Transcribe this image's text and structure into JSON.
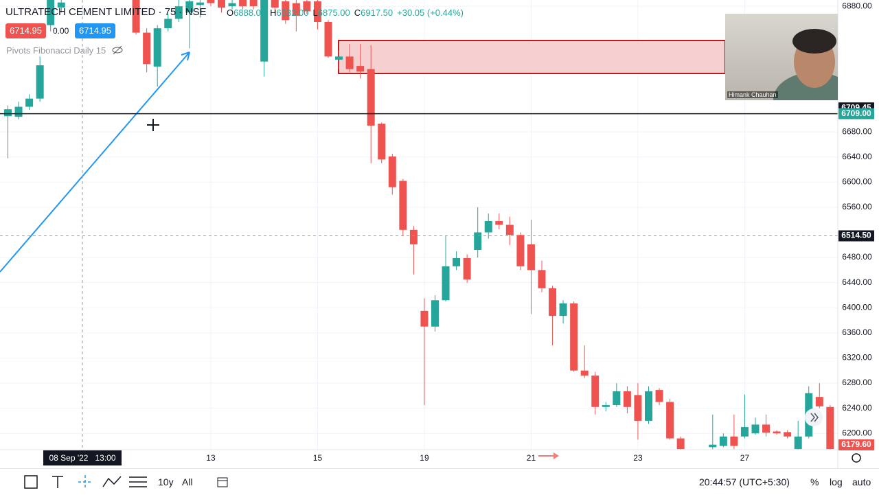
{
  "chart_data": {
    "type": "candlestick",
    "up_color": "#26a69a",
    "down_color": "#ef5350",
    "open": [
      6705,
      6704,
      6720,
      6733,
      6850,
      6878,
      null,
      null,
      null,
      null,
      null,
      null,
      6895,
      6838,
      6784,
      6845,
      6860,
      6870,
      6882,
      6890,
      6895,
      6880,
      6890,
      6892,
      6792,
      6892,
      6888,
      6885,
      6888,
      6888,
      6855,
      6795,
      6800,
      6785,
      6780,
      6693,
      6641,
      6602,
      6524,
      6395,
      6370,
      6412,
      6466,
      6479,
      6492,
      6520,
      6538,
      6532,
      6516,
      6501,
      6460,
      6431,
      6387,
      6407,
      6300,
      6292,
      6242,
      6245,
      6267,
      6261,
      6220,
      6269,
      6250,
      6192,
      null,
      null,
      6178,
      6180,
      6195,
      6195,
      6200,
      6214,
      6203,
      6202,
      6175,
      6195,
      6258,
      6242
    ],
    "high": [
      6722,
      6728,
      6740,
      6800,
      6895,
      6890,
      null,
      null,
      null,
      null,
      null,
      null,
      6900,
      6845,
      6850,
      6868,
      6895,
      6892,
      6892,
      6895,
      6900,
      6890,
      6895,
      6895,
      6900,
      6895,
      6892,
      6890,
      6892,
      6895,
      6858,
      6810,
      6820,
      6820,
      6818,
      6695,
      6645,
      6605,
      6530,
      6415,
      6420,
      6515,
      6490,
      6485,
      6560,
      6550,
      6550,
      6545,
      6520,
      6540,
      6475,
      6435,
      6412,
      6410,
      6340,
      6298,
      6250,
      6280,
      6275,
      6280,
      6275,
      6272,
      6255,
      6195,
      null,
      null,
      6230,
      6200,
      6230,
      6262,
      6225,
      6230,
      6205,
      6205,
      6220,
      6275,
      6280,
      6245
    ],
    "low": [
      6638,
      6700,
      6715,
      6728,
      6840,
      6870,
      null,
      null,
      null,
      null,
      null,
      null,
      6835,
      6775,
      6752,
      6840,
      6855,
      6813,
      6862,
      6880,
      6870,
      6875,
      6875,
      6875,
      6768,
      6870,
      6852,
      6840,
      6868,
      6843,
      6798,
      6780,
      6775,
      6765,
      6630,
      6630,
      6580,
      6515,
      6453,
      6245,
      6362,
      6410,
      6460,
      6440,
      6480,
      6510,
      6525,
      6500,
      6460,
      6390,
      6425,
      6340,
      6375,
      6298,
      6288,
      6230,
      6235,
      6242,
      6232,
      6190,
      6215,
      6245,
      6190,
      6170,
      null,
      null,
      6175,
      6178,
      6175,
      6192,
      6198,
      6195,
      6198,
      6192,
      6170,
      6192,
      6240,
      6170
    ],
    "close": [
      6716,
      6720,
      6733,
      6786,
      6890,
      6886,
      null,
      null,
      null,
      null,
      null,
      null,
      6838,
      6788,
      6845,
      6860,
      6880,
      6888,
      6886,
      6885,
      6878,
      6885,
      6880,
      6880,
      6892,
      6878,
      6858,
      6865,
      6872,
      6855,
      6800,
      6800,
      6780,
      6776,
      6690,
      6636,
      6592,
      6524,
      6501,
      6370,
      6412,
      6466,
      6479,
      6445,
      6520,
      6538,
      6532,
      6516,
      6466,
      6460,
      6431,
      6387,
      6407,
      6300,
      6292,
      6242,
      6245,
      6267,
      6242,
      6220,
      6267,
      6250,
      6192,
      6175,
      null,
      null,
      6182,
      6195,
      6180,
      6210,
      6214,
      6201,
      6200,
      6195,
      6195,
      6264,
      6243,
      6175
    ],
    "ylim": [
      6174,
      6890
    ],
    "yticks": [
      {
        "value": 6880,
        "label": "6880.00"
      },
      {
        "value": 6680,
        "label": "6680.00"
      },
      {
        "value": 6640,
        "label": "6640.00"
      },
      {
        "value": 6600,
        "label": "6600.00"
      },
      {
        "value": 6560,
        "label": "6560.00"
      },
      {
        "value": 6480,
        "label": "6480.00"
      },
      {
        "value": 6440,
        "label": "6440.00"
      },
      {
        "value": 6400,
        "label": "6400.00"
      },
      {
        "value": 6360,
        "label": "6360.00"
      },
      {
        "value": 6320,
        "label": "6320.00"
      },
      {
        "value": 6280,
        "label": "6280.00"
      },
      {
        "value": 6240,
        "label": "6240.00"
      },
      {
        "value": 6200,
        "label": "6200.00"
      }
    ],
    "xticks": [
      {
        "value": 19,
        "label": "13"
      },
      {
        "value": 29,
        "label": "15"
      },
      {
        "value": 39,
        "label": "19"
      },
      {
        "value": 49,
        "label": "21"
      },
      {
        "value": 59,
        "label": "23"
      },
      {
        "value": 69,
        "label": "27"
      }
    ],
    "price_tags": [
      {
        "value": 6709.45,
        "label": "6709.45",
        "color": "#131722"
      },
      {
        "value": 6709,
        "label": "6709.00",
        "color": "#26a69a"
      },
      {
        "value": 6514.5,
        "label": "6514.50",
        "color": "#131722"
      },
      {
        "value": 6179.6,
        "label": "6179.60",
        "color": "#ef5350"
      }
    ],
    "grid": true
  },
  "header": {
    "symbol": "ULTRATECH CEMENT LIMITED",
    "interval": "75",
    "exchange": "NSE",
    "ohlc": [
      {
        "key": "O",
        "value": "6888.00"
      },
      {
        "key": "H",
        "value": "6932.00"
      },
      {
        "key": "L",
        "value": "6875.00"
      },
      {
        "key": "C",
        "value": "6917.50"
      }
    ],
    "change": "+30.05 (+0.44%)",
    "sell": "6714.95",
    "spread": "0.00",
    "buy": "6714.95",
    "indicator": "Pivots Fibonacci Daily 15"
  },
  "crosshair_time": "08 Sep '22   13:00",
  "webcam_name": "Himank Chauhan",
  "toolbar": {
    "range_10y": "10y",
    "range_all": "All",
    "clock": "20:44:57 (UTC+5:30)",
    "percent": "%",
    "log": "log",
    "auto": "auto"
  }
}
